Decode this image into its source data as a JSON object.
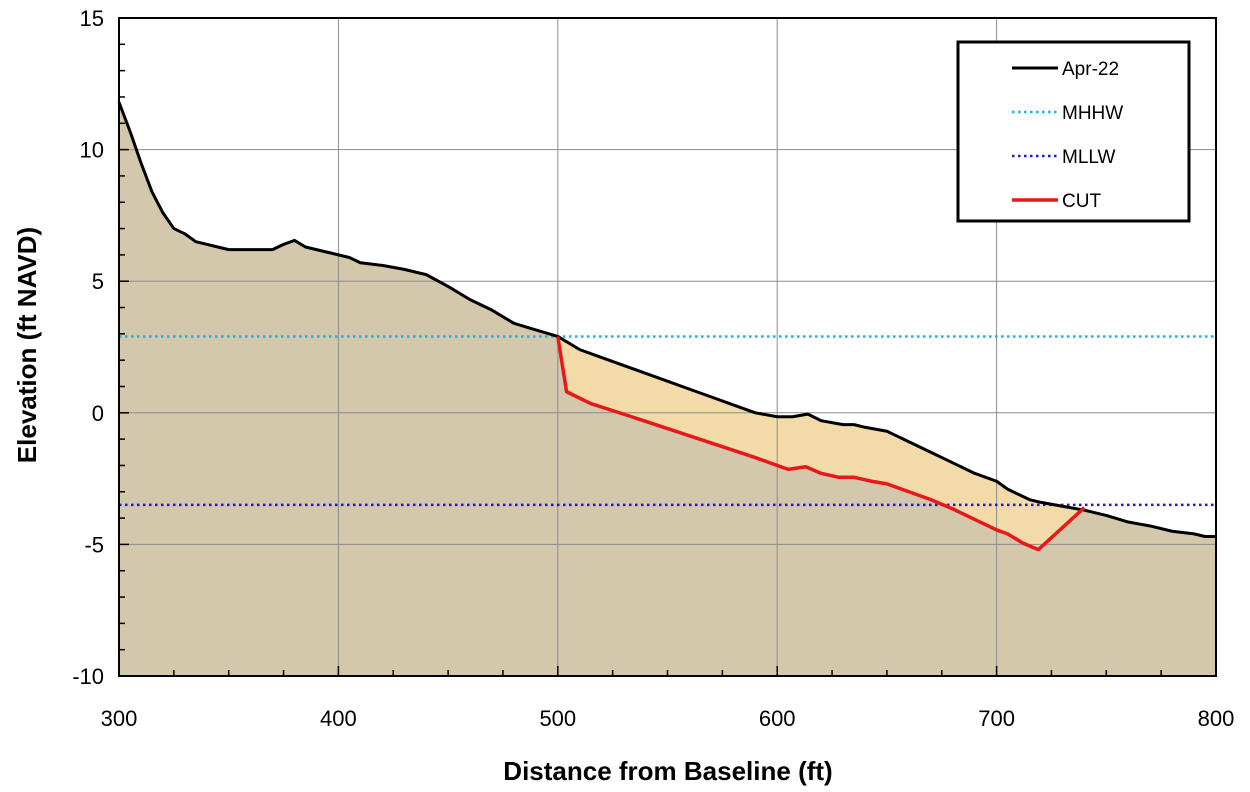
{
  "chart_data": {
    "type": "line",
    "title": "",
    "xlabel": "Distance from Baseline (ft)",
    "ylabel": "Elevation (ft NAVD)",
    "xlim": [
      300,
      800
    ],
    "ylim": [
      -10,
      15
    ],
    "x_ticks": [
      300,
      400,
      500,
      600,
      700,
      800
    ],
    "y_ticks": [
      -10,
      -5,
      0,
      5,
      10,
      15
    ],
    "x_tick_labels": [
      "300",
      "400",
      "500",
      "600",
      "700",
      "800"
    ],
    "y_tick_labels": [
      "-10",
      "-5",
      "0",
      "5",
      "10",
      "15"
    ],
    "grid": true,
    "legend_position": "top-right",
    "colors": {
      "ground_fill": "#d4c8ac",
      "cut_fill": "#f2dba8",
      "profile": "#000000",
      "mhhw": "#1ab3e6",
      "mllw": "#1a1acc",
      "cut": "#e81818"
    },
    "series": [
      {
        "name": "Apr-22",
        "style": "solid",
        "x": [
          300,
          305,
          310,
          315,
          320,
          325,
          330,
          335,
          340,
          345,
          350,
          360,
          370,
          375,
          380,
          385,
          390,
          395,
          400,
          405,
          410,
          420,
          430,
          440,
          450,
          460,
          470,
          480,
          490,
          500,
          510,
          520,
          530,
          540,
          550,
          560,
          570,
          580,
          590,
          600,
          607,
          614,
          620,
          630,
          635,
          640,
          650,
          660,
          670,
          680,
          690,
          700,
          705,
          710,
          715,
          720,
          730,
          740,
          750,
          760,
          770,
          780,
          790,
          795,
          800
        ],
        "y": [
          11.8,
          10.7,
          9.5,
          8.4,
          7.6,
          7.0,
          6.8,
          6.5,
          6.4,
          6.3,
          6.2,
          6.2,
          6.2,
          6.4,
          6.55,
          6.3,
          6.2,
          6.1,
          6.0,
          5.9,
          5.7,
          5.6,
          5.45,
          5.25,
          4.8,
          4.3,
          3.9,
          3.4,
          3.15,
          2.9,
          2.4,
          2.1,
          1.8,
          1.5,
          1.2,
          0.9,
          0.6,
          0.3,
          0.0,
          -0.15,
          -0.15,
          -0.05,
          -0.3,
          -0.45,
          -0.45,
          -0.55,
          -0.7,
          -1.1,
          -1.5,
          -1.9,
          -2.3,
          -2.6,
          -2.9,
          -3.1,
          -3.3,
          -3.4,
          -3.55,
          -3.7,
          -3.9,
          -4.15,
          -4.3,
          -4.5,
          -4.6,
          -4.7,
          -4.7
        ]
      },
      {
        "name": "MHHW",
        "style": "dotted",
        "x": [
          300,
          800
        ],
        "y": [
          2.9,
          2.9
        ]
      },
      {
        "name": "MLLW",
        "style": "dotted",
        "x": [
          300,
          800
        ],
        "y": [
          -3.5,
          -3.5
        ]
      },
      {
        "name": "CUT",
        "style": "solid",
        "x": [
          500,
          504,
          515,
          530,
          550,
          570,
          590,
          605,
          613,
          620,
          628,
          635,
          643,
          650,
          660,
          670,
          680,
          690,
          700,
          705,
          712,
          719,
          740
        ],
        "y": [
          2.9,
          0.8,
          0.35,
          -0.05,
          -0.6,
          -1.15,
          -1.7,
          -2.15,
          -2.05,
          -2.3,
          -2.45,
          -2.45,
          -2.6,
          -2.7,
          -3.0,
          -3.3,
          -3.65,
          -4.05,
          -4.45,
          -4.6,
          -4.95,
          -5.2,
          -3.6
        ]
      }
    ]
  }
}
